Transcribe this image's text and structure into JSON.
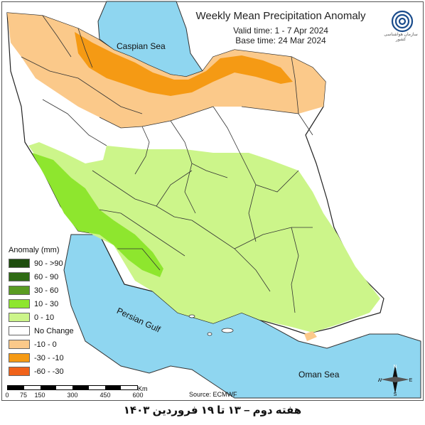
{
  "title": "Weekly Mean Precipitation Anomaly",
  "valid_time": "Valid time: 1 - 7 Apr 2024",
  "base_time": "Base time: 24 Mar 2024",
  "logo": {
    "icon": "iran-meteorological-organization-logo",
    "text": "سازمان هواشناسی کشور"
  },
  "seas": {
    "caspian": "Caspian Sea",
    "persian_gulf": "Persian Gulf",
    "oman": "Oman Sea"
  },
  "legend": {
    "title": "Anomaly (mm)",
    "items": [
      {
        "label": "90 - >90",
        "color": "#1e4d0e"
      },
      {
        "label": "60 - 90",
        "color": "#2f6b14"
      },
      {
        "label": "30 - 60",
        "color": "#5a9c22"
      },
      {
        "label": "10 - 30",
        "color": "#8ee62e"
      },
      {
        "label": "0 - 10",
        "color": "#ccf58a"
      },
      {
        "label": "No Change",
        "color": "#ffffff"
      },
      {
        "label": "-10 - 0",
        "color": "#fbc98a"
      },
      {
        "label": "-30 - -10",
        "color": "#f59a14"
      },
      {
        "label": "-60 - -30",
        "color": "#f0621a"
      }
    ]
  },
  "scale_bar": {
    "ticks": [
      "0",
      "75",
      "150",
      "300",
      "450",
      "600"
    ],
    "unit": "Km"
  },
  "source": "Source: ECMWF",
  "compass": {
    "n": "N",
    "s": "S",
    "e": "E",
    "w": "W"
  },
  "caption": "هفته دوم – ۱۳ تا ۱۹ فروردین ۱۴۰۳",
  "colors": {
    "water": "#8fd6f0",
    "border": "#222222"
  }
}
